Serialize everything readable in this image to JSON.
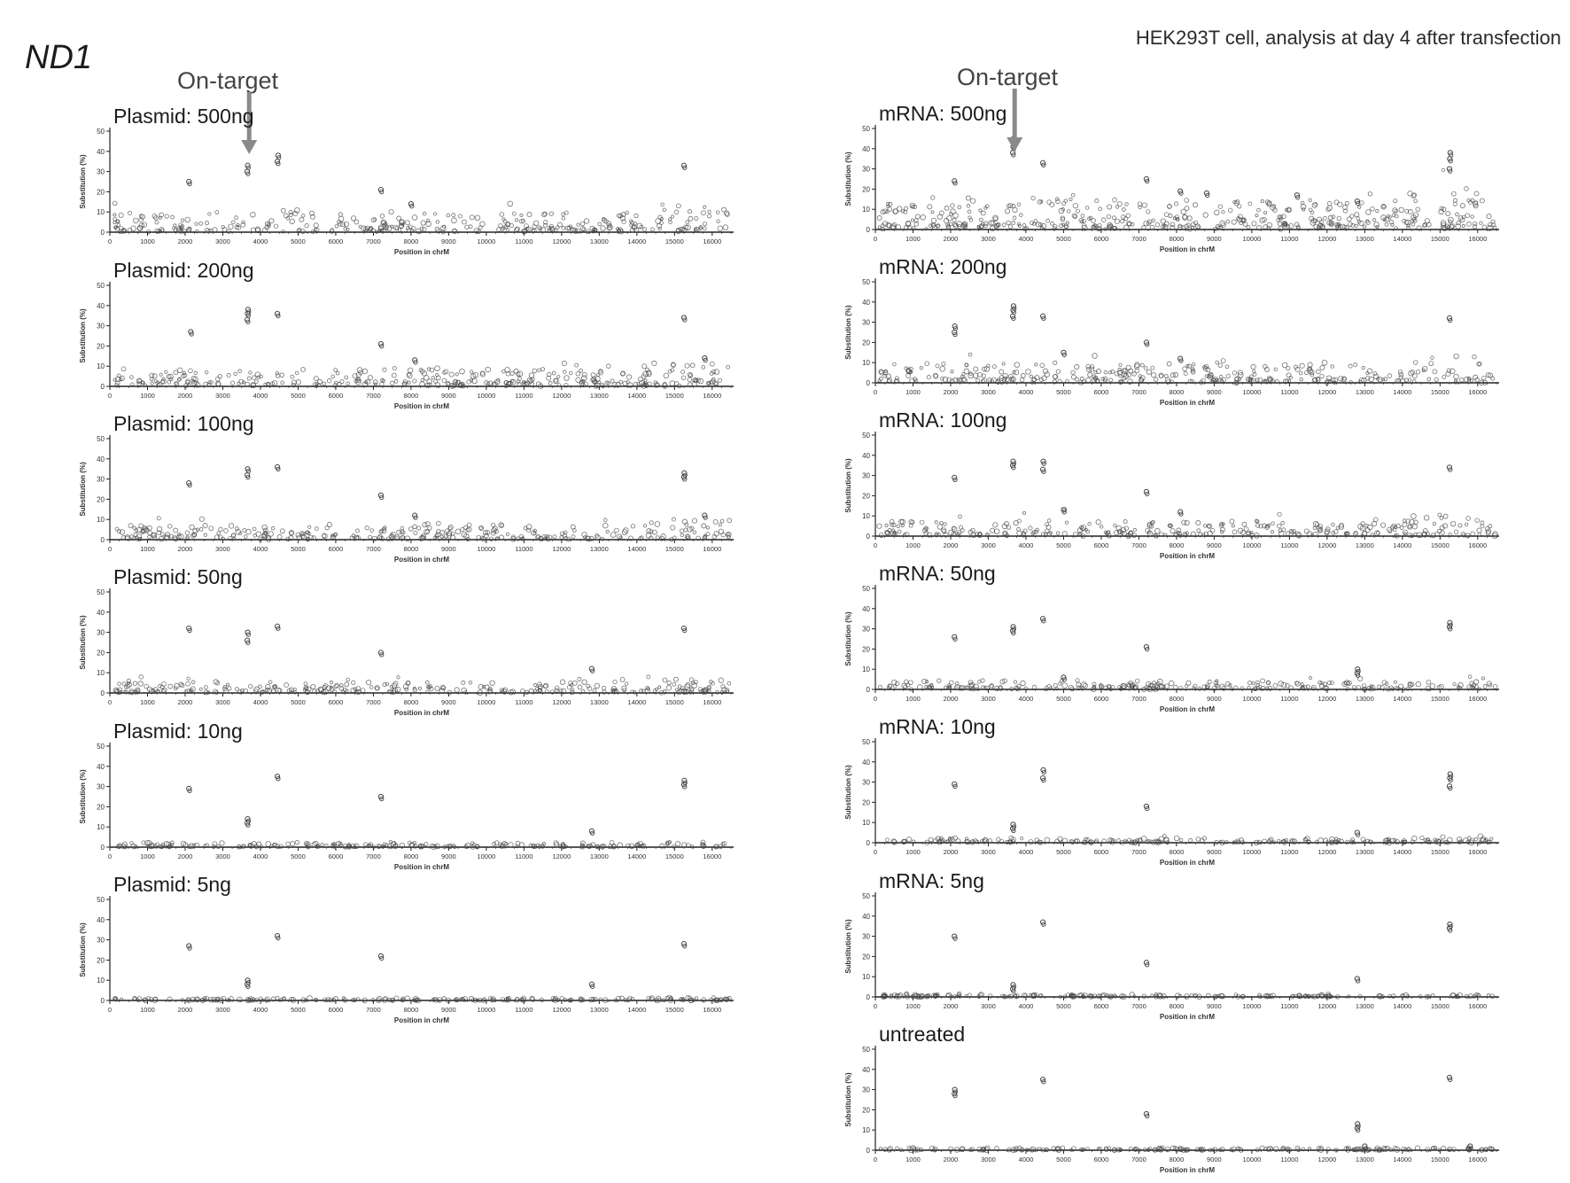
{
  "gene_label": "ND1",
  "subtitle": "HEK293T cell, analysis at day 4 after transfection",
  "annotation": "On-target",
  "on_target_position": 3700,
  "colors": {
    "marks": "#444444",
    "axis": "#222222",
    "arrow": "#8a8a8a"
  },
  "chart_data": [
    {
      "type": "scatter",
      "title": "Plasmid: 500ng",
      "column": "left",
      "xlabel": "Position in chrM",
      "ylabel": "Substitution (%)",
      "xlim": [
        0,
        16569
      ],
      "ylim": [
        0,
        50
      ],
      "xticks": [
        "0",
        "1000",
        "2000",
        "3000",
        "4000",
        "5000",
        "6000",
        "7000",
        "8000",
        "9000",
        "10000",
        "11000",
        "12000",
        "13000",
        "14000",
        "15000",
        "16000"
      ],
      "yticks": [
        "0",
        "10",
        "20",
        "30",
        "40",
        "50"
      ],
      "background": {
        "level": 3,
        "spread": 9
      },
      "points": [
        [
          2100,
          25
        ],
        [
          3650,
          30
        ],
        [
          3660,
          33
        ],
        [
          4450,
          35
        ],
        [
          4470,
          38
        ],
        [
          7200,
          21
        ],
        [
          8000,
          14
        ],
        [
          15250,
          33
        ]
      ]
    },
    {
      "type": "scatter",
      "title": "Plasmid: 200ng",
      "column": "left",
      "xlabel": "Position in chrM",
      "ylabel": "Substitution (%)",
      "xlim": [
        0,
        16569
      ],
      "ylim": [
        0,
        50
      ],
      "xticks": [
        "0",
        "1000",
        "2000",
        "3000",
        "4000",
        "5000",
        "6000",
        "7000",
        "8000",
        "9000",
        "10000",
        "11000",
        "12000",
        "13000",
        "14000",
        "15000",
        "16000"
      ],
      "yticks": [
        "0",
        "10",
        "20",
        "30",
        "40",
        "50"
      ],
      "background": {
        "level": 3,
        "spread": 8
      },
      "points": [
        [
          2150,
          27
        ],
        [
          3650,
          33
        ],
        [
          3660,
          36
        ],
        [
          3670,
          38
        ],
        [
          4450,
          36
        ],
        [
          7200,
          21
        ],
        [
          8100,
          13
        ],
        [
          15250,
          34
        ],
        [
          15800,
          14
        ]
      ]
    },
    {
      "type": "scatter",
      "title": "Plasmid: 100ng",
      "column": "left",
      "xlabel": "Position in chrM",
      "ylabel": "Substitution (%)",
      "xlim": [
        0,
        16569
      ],
      "ylim": [
        0,
        50
      ],
      "xticks": [
        "0",
        "1000",
        "2000",
        "3000",
        "4000",
        "5000",
        "6000",
        "7000",
        "8000",
        "9000",
        "10000",
        "11000",
        "12000",
        "13000",
        "14000",
        "15000",
        "16000"
      ],
      "yticks": [
        "0",
        "10",
        "20",
        "30",
        "40",
        "50"
      ],
      "background": {
        "level": 2.5,
        "spread": 7
      },
      "points": [
        [
          2100,
          28
        ],
        [
          3650,
          32
        ],
        [
          3660,
          35
        ],
        [
          4450,
          36
        ],
        [
          7200,
          22
        ],
        [
          8100,
          12
        ],
        [
          15250,
          31
        ],
        [
          15260,
          33
        ],
        [
          15800,
          12
        ]
      ]
    },
    {
      "type": "scatter",
      "title": "Plasmid: 50ng",
      "column": "left",
      "xlabel": "Position in chrM",
      "ylabel": "Substitution (%)",
      "xlim": [
        0,
        16569
      ],
      "ylim": [
        0,
        50
      ],
      "xticks": [
        "0",
        "1000",
        "2000",
        "3000",
        "4000",
        "5000",
        "6000",
        "7000",
        "8000",
        "9000",
        "10000",
        "11000",
        "12000",
        "13000",
        "14000",
        "15000",
        "16000"
      ],
      "yticks": [
        "0",
        "10",
        "20",
        "30",
        "40",
        "50"
      ],
      "background": {
        "level": 2,
        "spread": 5
      },
      "points": [
        [
          2100,
          32
        ],
        [
          3650,
          26
        ],
        [
          3660,
          30
        ],
        [
          4450,
          33
        ],
        [
          7200,
          20
        ],
        [
          12800,
          12
        ],
        [
          15250,
          32
        ]
      ]
    },
    {
      "type": "scatter",
      "title": "Plasmid: 10ng",
      "column": "left",
      "xlabel": "Position in chrM",
      "ylabel": "Substitution (%)",
      "xlim": [
        0,
        16569
      ],
      "ylim": [
        0,
        50
      ],
      "xticks": [
        "0",
        "1000",
        "2000",
        "3000",
        "4000",
        "5000",
        "6000",
        "7000",
        "8000",
        "9000",
        "10000",
        "11000",
        "12000",
        "13000",
        "14000",
        "15000",
        "16000"
      ],
      "yticks": [
        "0",
        "10",
        "20",
        "30",
        "40",
        "50"
      ],
      "background": {
        "level": 0.8,
        "spread": 2
      },
      "points": [
        [
          2100,
          29
        ],
        [
          3650,
          12
        ],
        [
          3660,
          14
        ],
        [
          4450,
          35
        ],
        [
          7200,
          25
        ],
        [
          12800,
          8
        ],
        [
          15250,
          31
        ],
        [
          15260,
          33
        ]
      ]
    },
    {
      "type": "scatter",
      "title": "Plasmid: 5ng",
      "column": "left",
      "xlabel": "Position in chrM",
      "ylabel": "Substitution (%)",
      "xlim": [
        0,
        16569
      ],
      "ylim": [
        0,
        50
      ],
      "xticks": [
        "0",
        "1000",
        "2000",
        "3000",
        "4000",
        "5000",
        "6000",
        "7000",
        "8000",
        "9000",
        "10000",
        "11000",
        "12000",
        "13000",
        "14000",
        "15000",
        "16000"
      ],
      "yticks": [
        "0",
        "10",
        "20",
        "30",
        "40",
        "50"
      ],
      "background": {
        "level": 0.5,
        "spread": 1
      },
      "points": [
        [
          2100,
          27
        ],
        [
          3650,
          8
        ],
        [
          3660,
          10
        ],
        [
          4450,
          32
        ],
        [
          7200,
          22
        ],
        [
          12800,
          8
        ],
        [
          15250,
          28
        ]
      ]
    },
    {
      "type": "scatter",
      "title": "mRNA: 500ng",
      "column": "right",
      "xlabel": "Position in chrM",
      "ylabel": "Substitution (%)",
      "xlim": [
        0,
        16569
      ],
      "ylim": [
        0,
        50
      ],
      "xticks": [
        "0",
        "1000",
        "2000",
        "3000",
        "4000",
        "5000",
        "6000",
        "7000",
        "8000",
        "9000",
        "10000",
        "11000",
        "12000",
        "13000",
        "14000",
        "15000",
        "16000"
      ],
      "yticks": [
        "0",
        "10",
        "20",
        "30",
        "40",
        "50"
      ],
      "background": {
        "level": 5,
        "spread": 14
      },
      "points": [
        [
          2100,
          24
        ],
        [
          3650,
          38
        ],
        [
          3660,
          41
        ],
        [
          3670,
          45
        ],
        [
          4450,
          33
        ],
        [
          7200,
          25
        ],
        [
          8100,
          19
        ],
        [
          8800,
          18
        ],
        [
          11200,
          17
        ],
        [
          12800,
          14
        ],
        [
          15250,
          30
        ],
        [
          15260,
          35
        ],
        [
          15270,
          38
        ]
      ]
    },
    {
      "type": "scatter",
      "title": "mRNA: 200ng",
      "column": "right",
      "xlabel": "Position in chrM",
      "ylabel": "Substitution (%)",
      "xlim": [
        0,
        16569
      ],
      "ylim": [
        0,
        50
      ],
      "xticks": [
        "0",
        "1000",
        "2000",
        "3000",
        "4000",
        "5000",
        "6000",
        "7000",
        "8000",
        "9000",
        "10000",
        "11000",
        "12000",
        "13000",
        "14000",
        "15000",
        "16000"
      ],
      "yticks": [
        "0",
        "10",
        "20",
        "30",
        "40",
        "50"
      ],
      "background": {
        "level": 3,
        "spread": 9
      },
      "points": [
        [
          2100,
          25
        ],
        [
          2110,
          28
        ],
        [
          3650,
          33
        ],
        [
          3660,
          36
        ],
        [
          3670,
          38
        ],
        [
          4450,
          33
        ],
        [
          5000,
          15
        ],
        [
          7200,
          20
        ],
        [
          8100,
          12
        ],
        [
          15250,
          32
        ]
      ]
    },
    {
      "type": "scatter",
      "title": "mRNA: 100ng",
      "column": "right",
      "xlabel": "Position in chrM",
      "ylabel": "Substitution (%)",
      "xlim": [
        0,
        16569
      ],
      "ylim": [
        0,
        50
      ],
      "xticks": [
        "0",
        "1000",
        "2000",
        "3000",
        "4000",
        "5000",
        "6000",
        "7000",
        "8000",
        "9000",
        "10000",
        "11000",
        "12000",
        "13000",
        "14000",
        "15000",
        "16000"
      ],
      "yticks": [
        "0",
        "10",
        "20",
        "30",
        "40",
        "50"
      ],
      "background": {
        "level": 2.5,
        "spread": 7
      },
      "points": [
        [
          2100,
          29
        ],
        [
          3650,
          35
        ],
        [
          3660,
          37
        ],
        [
          4450,
          33
        ],
        [
          4460,
          37
        ],
        [
          5000,
          13
        ],
        [
          7200,
          22
        ],
        [
          8100,
          12
        ],
        [
          15250,
          34
        ]
      ]
    },
    {
      "type": "scatter",
      "title": "mRNA: 50ng",
      "column": "right",
      "xlabel": "Position in chrM",
      "ylabel": "Substitution (%)",
      "xlim": [
        0,
        16569
      ],
      "ylim": [
        0,
        50
      ],
      "xticks": [
        "0",
        "1000",
        "2000",
        "3000",
        "4000",
        "5000",
        "6000",
        "7000",
        "8000",
        "9000",
        "10000",
        "11000",
        "12000",
        "13000",
        "14000",
        "15000",
        "16000"
      ],
      "yticks": [
        "0",
        "10",
        "20",
        "30",
        "40",
        "50"
      ],
      "background": {
        "level": 1.5,
        "spread": 4
      },
      "points": [
        [
          2100,
          26
        ],
        [
          3650,
          29
        ],
        [
          3660,
          31
        ],
        [
          4450,
          35
        ],
        [
          5000,
          6
        ],
        [
          7200,
          21
        ],
        [
          12800,
          8
        ],
        [
          12810,
          10
        ],
        [
          15250,
          31
        ],
        [
          15260,
          33
        ]
      ]
    },
    {
      "type": "scatter",
      "title": "mRNA: 10ng",
      "column": "right",
      "xlabel": "Position in chrM",
      "ylabel": "Substitution (%)",
      "xlim": [
        0,
        16569
      ],
      "ylim": [
        0,
        50
      ],
      "xticks": [
        "0",
        "1000",
        "2000",
        "3000",
        "4000",
        "5000",
        "6000",
        "7000",
        "8000",
        "9000",
        "10000",
        "11000",
        "12000",
        "13000",
        "14000",
        "15000",
        "16000"
      ],
      "yticks": [
        "0",
        "10",
        "20",
        "30",
        "40",
        "50"
      ],
      "background": {
        "level": 0.8,
        "spread": 2
      },
      "points": [
        [
          2100,
          29
        ],
        [
          3650,
          7
        ],
        [
          3660,
          9
        ],
        [
          4450,
          32
        ],
        [
          4460,
          36
        ],
        [
          7200,
          18
        ],
        [
          12800,
          5
        ],
        [
          15250,
          28
        ],
        [
          15260,
          32
        ],
        [
          15270,
          34
        ]
      ]
    },
    {
      "type": "scatter",
      "title": "mRNA: 5ng",
      "column": "right",
      "xlabel": "Position in chrM",
      "ylabel": "Substitution (%)",
      "xlim": [
        0,
        16569
      ],
      "ylim": [
        0,
        50
      ],
      "xticks": [
        "0",
        "1000",
        "2000",
        "3000",
        "4000",
        "5000",
        "6000",
        "7000",
        "8000",
        "9000",
        "10000",
        "11000",
        "12000",
        "13000",
        "14000",
        "15000",
        "16000"
      ],
      "yticks": [
        "0",
        "10",
        "20",
        "30",
        "40",
        "50"
      ],
      "background": {
        "level": 0.5,
        "spread": 1
      },
      "points": [
        [
          2100,
          30
        ],
        [
          3650,
          4
        ],
        [
          3660,
          6
        ],
        [
          4450,
          37
        ],
        [
          7200,
          17
        ],
        [
          12800,
          9
        ],
        [
          15250,
          34
        ],
        [
          15260,
          36
        ]
      ]
    },
    {
      "type": "scatter",
      "title": "untreated",
      "column": "right",
      "xlabel": "Position in chrM",
      "ylabel": "Substitution (%)",
      "xlim": [
        0,
        16569
      ],
      "ylim": [
        0,
        50
      ],
      "xticks": [
        "0",
        "1000",
        "2000",
        "3000",
        "4000",
        "5000",
        "6000",
        "7000",
        "8000",
        "9000",
        "10000",
        "11000",
        "12000",
        "13000",
        "14000",
        "15000",
        "16000"
      ],
      "yticks": [
        "0",
        "10",
        "20",
        "30",
        "40",
        "50"
      ],
      "background": {
        "level": 0.4,
        "spread": 1
      },
      "points": [
        [
          2100,
          28
        ],
        [
          2110,
          30
        ],
        [
          4450,
          35
        ],
        [
          7200,
          18
        ],
        [
          12800,
          11
        ],
        [
          12810,
          13
        ],
        [
          13000,
          2
        ],
        [
          15250,
          36
        ],
        [
          15800,
          2
        ]
      ]
    }
  ]
}
